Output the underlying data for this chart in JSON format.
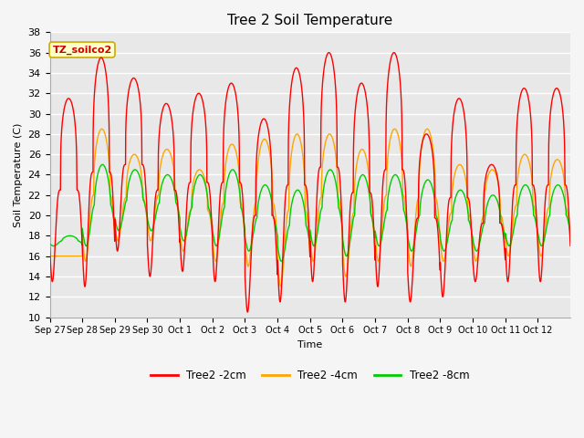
{
  "title": "Tree 2 Soil Temperature",
  "xlabel": "Time",
  "ylabel": "Soil Temperature (C)",
  "ylim": [
    10,
    38
  ],
  "yticks": [
    10,
    12,
    14,
    16,
    18,
    20,
    22,
    24,
    26,
    28,
    30,
    32,
    34,
    36,
    38
  ],
  "x_labels": [
    "Sep 27",
    "Sep 28",
    "Sep 29",
    "Sep 30",
    "Oct 1",
    "Oct 2",
    "Oct 3",
    "Oct 4",
    "Oct 5",
    "Oct 6",
    "Oct 7",
    "Oct 8",
    "Oct 9",
    "Oct 10",
    "Oct 11",
    "Oct 12"
  ],
  "legend_labels": [
    "Tree2 -2cm",
    "Tree2 -4cm",
    "Tree2 -8cm"
  ],
  "line_colors": [
    "#ff0000",
    "#ffa500",
    "#00cc00"
  ],
  "annotation_text": "TZ_soilco2",
  "annotation_bg": "#ffffcc",
  "annotation_border": "#ccaa00",
  "fig_bg": "#f5f5f5",
  "plot_bg": "#e8e8e8",
  "grid_color": "#ffffff",
  "title_fontsize": 11,
  "peaks_2cm": [
    31.5,
    35.5,
    33.5,
    31.0,
    32.0,
    33.0,
    29.5,
    34.5,
    36.0,
    33.0,
    36.0,
    28.0,
    31.5,
    25.0,
    32.5,
    32.5
  ],
  "troughs_2cm": [
    13.5,
    13.0,
    16.5,
    14.0,
    14.5,
    13.5,
    10.5,
    11.5,
    13.5,
    11.5,
    13.0,
    11.5,
    12.0,
    13.5,
    13.5,
    13.5
  ],
  "peaks_4cm": [
    16.0,
    28.5,
    26.0,
    26.5,
    24.5,
    27.0,
    27.5,
    28.0,
    28.0,
    26.5,
    28.5,
    28.5,
    25.0,
    24.5,
    26.0,
    25.5
  ],
  "troughs_4cm": [
    16.0,
    15.5,
    17.5,
    17.5,
    16.5,
    15.5,
    15.0,
    13.0,
    15.5,
    14.0,
    15.5,
    15.0,
    15.5,
    15.5,
    16.0,
    16.0
  ],
  "peaks_8cm": [
    18.0,
    25.0,
    24.5,
    24.0,
    24.0,
    24.5,
    23.0,
    22.5,
    24.5,
    24.0,
    24.0,
    23.5,
    22.5,
    22.0,
    23.0,
    23.0
  ],
  "troughs_8cm": [
    17.0,
    17.0,
    18.5,
    18.5,
    17.5,
    17.0,
    16.5,
    15.5,
    17.0,
    16.0,
    17.0,
    16.5,
    16.5,
    16.5,
    17.0,
    17.0
  ],
  "days": 16
}
